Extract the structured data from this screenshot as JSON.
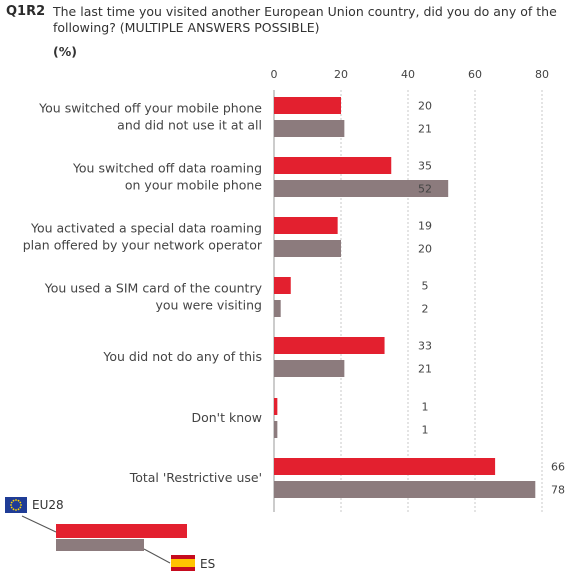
{
  "header": {
    "code": "Q1R2",
    "question": "The last time you visited another European Union country, did you do any of the following? (MULTIPLE ANSWERS POSSIBLE)",
    "unit": "(%)"
  },
  "chart_data": {
    "type": "bar",
    "orientation": "horizontal",
    "categories": [
      [
        "You switched off your mobile phone",
        "and did not use it at all"
      ],
      [
        "You switched off data roaming",
        "on your mobile phone"
      ],
      [
        "You activated a special data roaming",
        "plan offered by your network operator"
      ],
      [
        "You used a SIM card of the country",
        "you were visiting"
      ],
      [
        "You did not do any of this"
      ],
      [
        "Don't know"
      ],
      [
        "Total 'Restrictive use'"
      ]
    ],
    "series": [
      {
        "name": "EU28",
        "values": [
          20,
          35,
          19,
          5,
          33,
          1,
          66
        ],
        "color": "#e3202f"
      },
      {
        "name": "ES",
        "values": [
          21,
          52,
          20,
          2,
          21,
          1,
          78
        ],
        "color": "#8c7b7d"
      }
    ],
    "xlim": [
      0,
      80
    ],
    "xticks": [
      0,
      20,
      40,
      60,
      80
    ],
    "grid": true,
    "legend_position": "bottom-left",
    "legend_icons": [
      "eu-flag-icon",
      "spain-flag-icon"
    ]
  }
}
